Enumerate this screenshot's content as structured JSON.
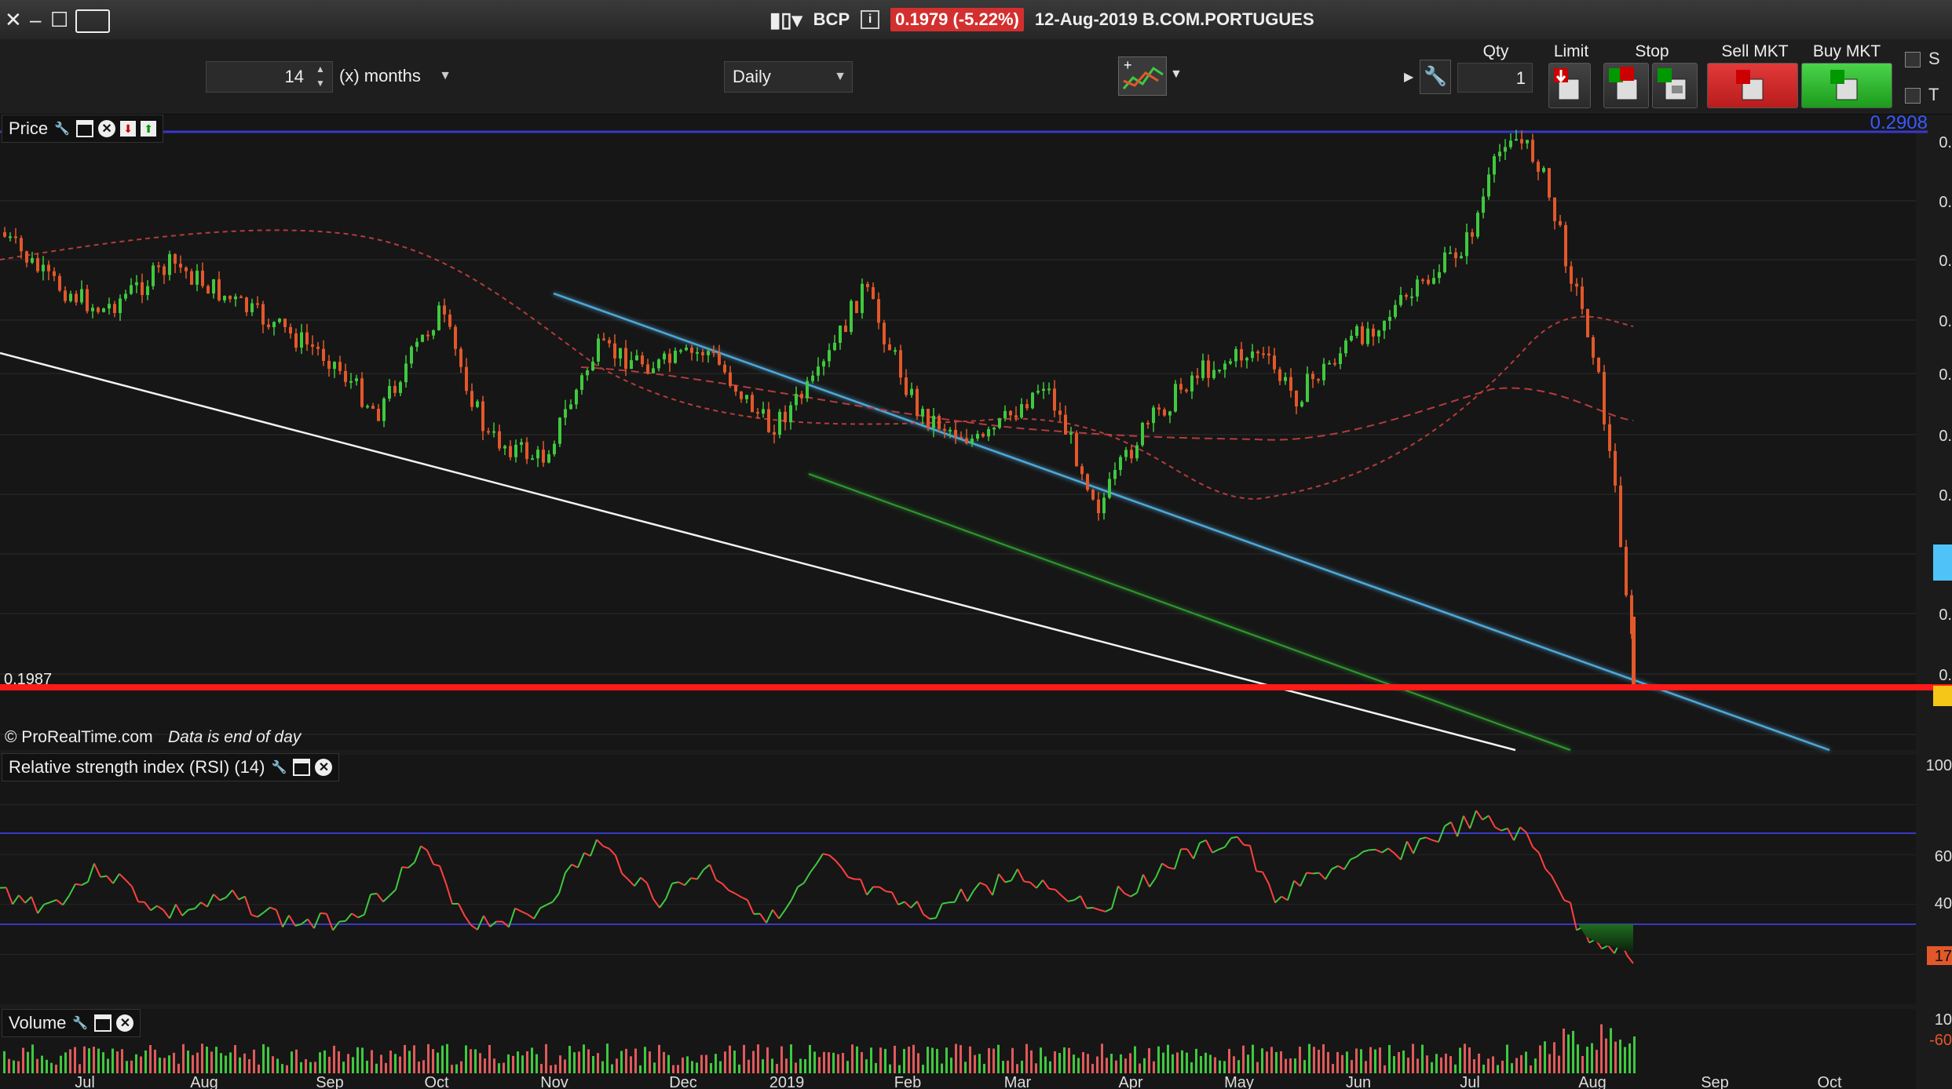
{
  "window": {
    "symbol": "BCP",
    "price_badge": "0.1979 (-5.22%)",
    "date_name": "12-Aug-2019 B.COM.PORTUGUES"
  },
  "toolbar": {
    "period_value": "14",
    "period_unit": "(x) months",
    "interval": "Daily",
    "qty_label": "Qty",
    "qty_value": "1",
    "limit_label": "Limit",
    "stop_label": "Stop",
    "sell_label": "Sell MKT",
    "buy_label": "Buy MKT",
    "side_s": "S",
    "side_t": "T"
  },
  "price_panel": {
    "label": "Price",
    "price_tag": "0.1987",
    "top_tag": "0.2908",
    "copyright": "© ProRealTime.com",
    "data_note": "Data is end of day"
  },
  "rsi_panel": {
    "label": "Relative strength index (RSI) (14)",
    "axis": [
      "100",
      "60",
      "40",
      "17"
    ]
  },
  "volume_panel": {
    "label": "Volume",
    "axis": [
      "10",
      "-60"
    ]
  },
  "x_axis": [
    "Jul",
    "Aug",
    "Sep",
    "Oct",
    "Nov",
    "Dec",
    "2019",
    "Feb",
    "Mar",
    "Apr",
    "May",
    "Jun",
    "Jul",
    "Aug",
    "Sep",
    "Oct"
  ],
  "colors": {
    "up": "#3fc93f",
    "down": "#e2582a",
    "support": "#4fc3f7",
    "price_line": "#ff1a1a"
  }
}
